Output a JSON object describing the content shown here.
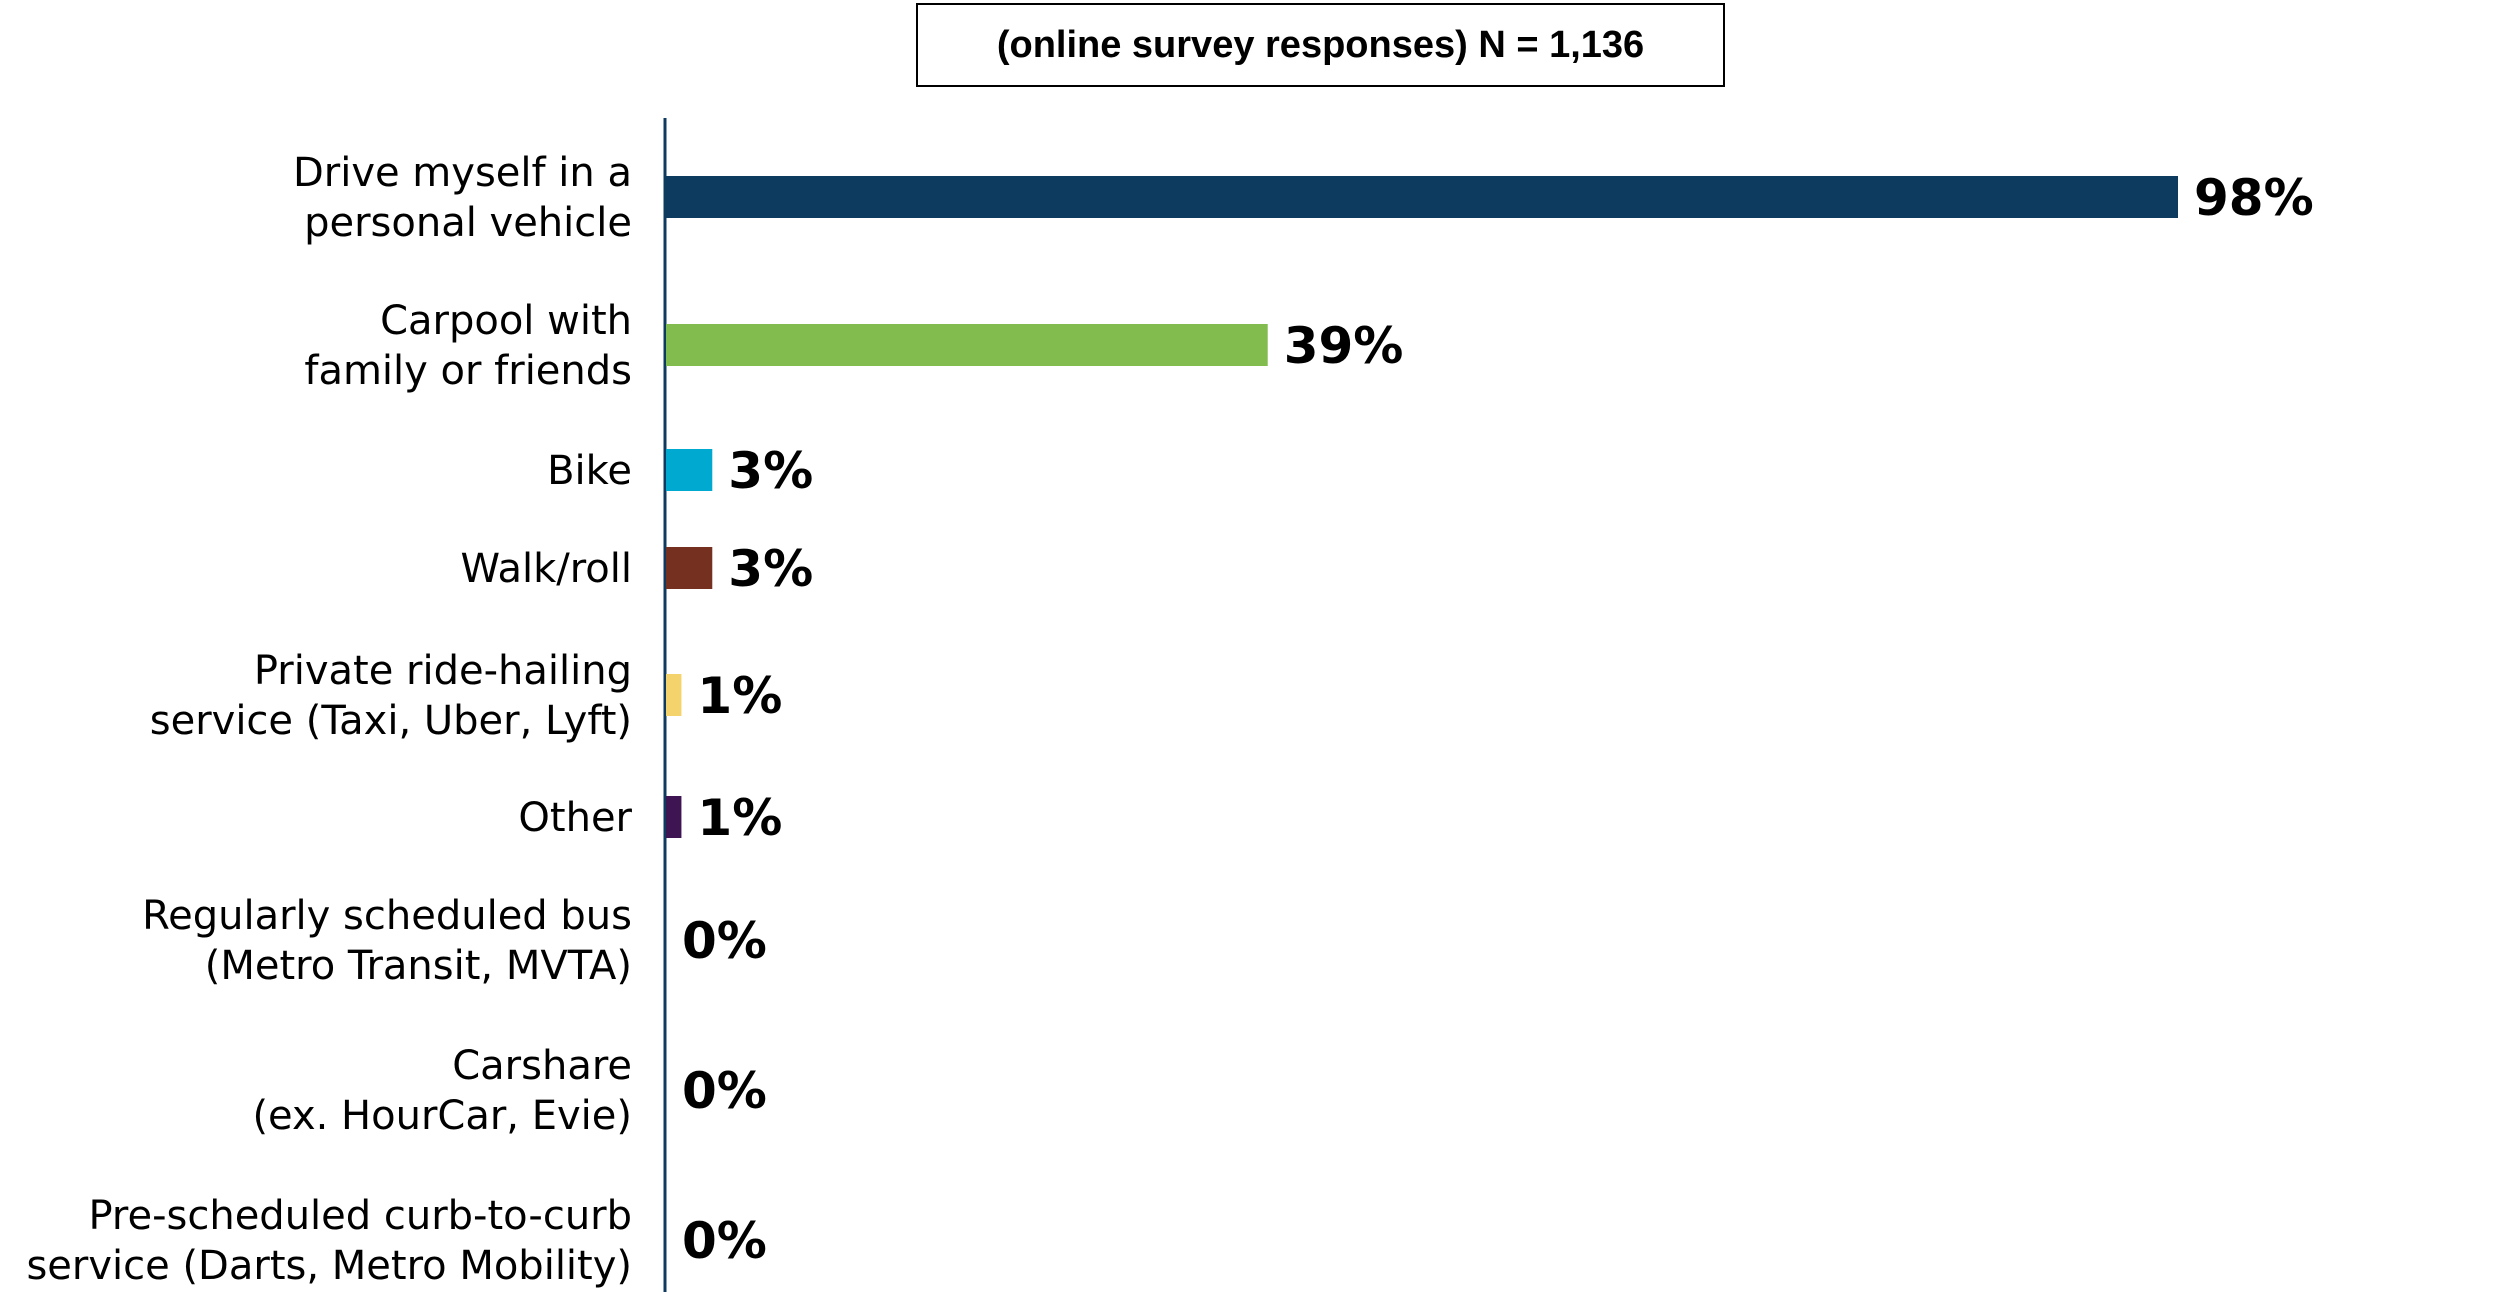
{
  "header": {
    "text": "(online survey responses) N = 1,136"
  },
  "chart_data": {
    "type": "bar",
    "orientation": "horizontal",
    "title": "",
    "xlabel": "",
    "ylabel": "",
    "xlim": [
      0,
      100
    ],
    "grid": false,
    "legend": "none",
    "categories": [
      [
        "Drive myself in a",
        "personal vehicle"
      ],
      [
        "Carpool with",
        "family or friends"
      ],
      [
        "Bike"
      ],
      [
        "Walk/roll"
      ],
      [
        "Private ride-hailing",
        "service (Taxi, Uber, Lyft)"
      ],
      [
        "Other"
      ],
      [
        "Regularly scheduled bus",
        "(Metro Transit, MVTA)"
      ],
      [
        "Carshare",
        "(ex. HourCar, Evie)"
      ],
      [
        "Pre-scheduled curb-to-curb",
        "service (Darts, Metro Mobility)"
      ]
    ],
    "values": [
      98,
      39,
      3,
      3,
      1,
      1,
      0,
      0,
      0
    ],
    "value_labels": [
      "98%",
      "39%",
      "3%",
      "3%",
      "1%",
      "1%",
      "0%",
      "0%",
      "0%"
    ],
    "colors": [
      "#0d3a5f",
      "#82bc4e",
      "#00a9cf",
      "#76301f",
      "#f5d36c",
      "#3e1452",
      "#0d3a5f",
      "#0d3a5f",
      "#0d3a5f"
    ],
    "axis_color": "#0d3a5f"
  }
}
